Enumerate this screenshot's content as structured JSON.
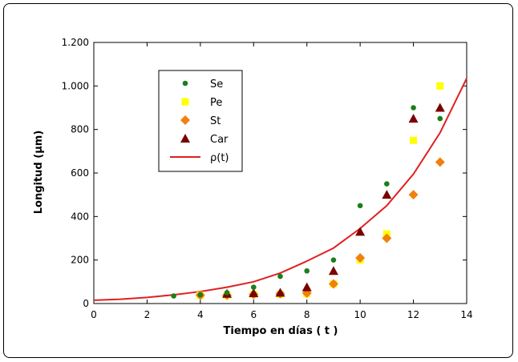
{
  "chart_data": {
    "type": "scatter",
    "xlabel": "Tiempo en días ( t )",
    "ylabel": "Longitud (μm)",
    "xlim": [
      0,
      14
    ],
    "ylim": [
      0,
      1200
    ],
    "xticks": [
      0,
      2,
      4,
      6,
      8,
      10,
      12,
      14
    ],
    "yticks": [
      0,
      200,
      400,
      600,
      800,
      1000,
      1200
    ],
    "ytick_labels": [
      "0",
      "200",
      "400",
      "600",
      "800",
      "1.000",
      "1.200"
    ],
    "xtick_labels": [
      "0",
      "2",
      "4",
      "6",
      "8",
      "10",
      "12",
      "14"
    ],
    "grid": false,
    "legend_position": "top-left",
    "series": [
      {
        "name": "Se",
        "marker": "circle",
        "color": "#1a7f1a",
        "x": [
          3,
          4,
          5,
          6,
          7,
          8,
          9,
          10,
          11,
          12,
          13
        ],
        "y": [
          35,
          40,
          50,
          75,
          125,
          150,
          200,
          450,
          550,
          900,
          850
        ]
      },
      {
        "name": "Pe",
        "marker": "square",
        "color": "#ffff00",
        "x": [
          4,
          5,
          6,
          7,
          8,
          9,
          10,
          11,
          12,
          13
        ],
        "y": [
          38,
          38,
          42,
          42,
          45,
          90,
          200,
          320,
          750,
          1000
        ]
      },
      {
        "name": "St",
        "marker": "diamond",
        "color": "#f08010",
        "x": [
          4,
          5,
          6,
          7,
          8,
          9,
          10,
          11,
          12,
          13
        ],
        "y": [
          38,
          38,
          42,
          45,
          48,
          90,
          210,
          300,
          500,
          650
        ]
      },
      {
        "name": "Car",
        "marker": "triangle",
        "color": "#7a0000",
        "x": [
          5,
          6,
          7,
          8,
          9,
          10,
          11,
          12,
          13
        ],
        "y": [
          45,
          48,
          50,
          75,
          150,
          330,
          500,
          850,
          900
        ]
      },
      {
        "name": "ρ(t)",
        "marker": "line",
        "color": "#e02020",
        "x": [
          0,
          1,
          2,
          3,
          4,
          5,
          6,
          7,
          8,
          9,
          10,
          11,
          12,
          13,
          14
        ],
        "y": [
          15,
          20,
          28,
          40,
          55,
          75,
          100,
          140,
          195,
          255,
          345,
          450,
          595,
          785,
          1035
        ]
      }
    ]
  }
}
